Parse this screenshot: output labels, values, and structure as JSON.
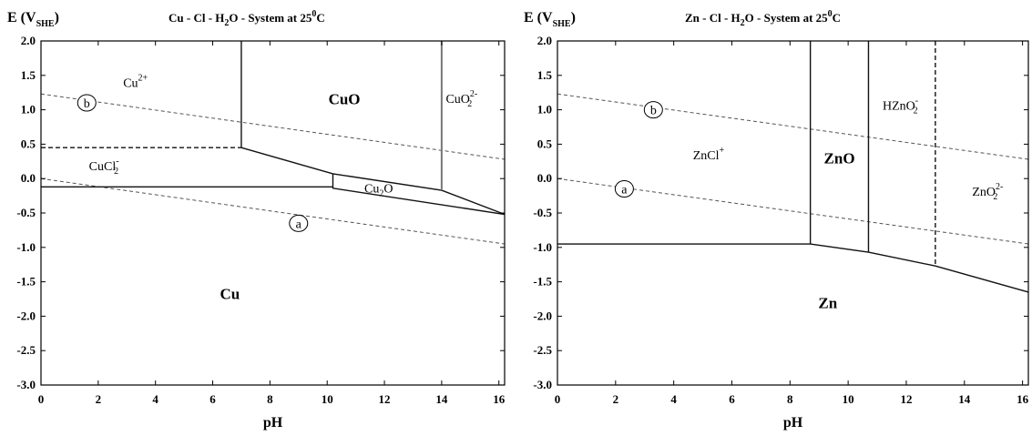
{
  "chart_data": [
    {
      "type": "line",
      "title": "Cu - Cl - H₂O - System at 25⁰C",
      "title_parts": {
        "pre": "Cu - Cl - H",
        "sub": "2",
        "mid": "O - System at 25",
        "sup": "0",
        "post": "C"
      },
      "xlabel": "pH",
      "ylabel": "E (V",
      "ylabel_sub": "SHE",
      "ylabel_close": ")",
      "xlim": [
        0,
        16.2
      ],
      "ylim": [
        -3.0,
        2.0
      ],
      "xticks": [
        0,
        2,
        4,
        6,
        8,
        10,
        12,
        14,
        16
      ],
      "yticks": [
        "2.0",
        "1.5",
        "1.0",
        "0.5",
        "0.0",
        "-0.5",
        "-1.0",
        "-1.5",
        "-2.0",
        "-2.5",
        "-3.0"
      ],
      "grid": false,
      "boundaries": [
        {
          "points": [
            [
              0,
              -0.12
            ],
            [
              10.2,
              -0.12
            ]
          ],
          "style": "solid"
        },
        {
          "points": [
            [
              0,
              0.45
            ],
            [
              7.0,
              0.45
            ]
          ],
          "style": "dashed"
        },
        {
          "points": [
            [
              7.0,
              2.0
            ],
            [
              7.0,
              0.45
            ]
          ],
          "style": "solid"
        },
        {
          "points": [
            [
              7.0,
              0.45
            ],
            [
              10.2,
              0.07
            ],
            [
              14.0,
              -0.17
            ],
            [
              16.2,
              -0.52
            ]
          ],
          "style": "solid"
        },
        {
          "points": [
            [
              10.2,
              0.07
            ],
            [
              10.2,
              -0.14
            ],
            [
              16.2,
              -0.52
            ]
          ],
          "style": "solid"
        },
        {
          "points": [
            [
              14.0,
              2.0
            ],
            [
              14.0,
              -0.17
            ]
          ],
          "style": "solid-gray"
        }
      ],
      "water_lines": [
        {
          "name": "a",
          "x": [
            0,
            16.2
          ],
          "y": [
            0.0,
            -0.95
          ]
        },
        {
          "name": "b",
          "x": [
            0,
            16.2
          ],
          "y": [
            1.23,
            0.28
          ]
        }
      ],
      "markers": [
        {
          "label": "a",
          "x": 9.0,
          "y": -0.65
        },
        {
          "label": "b",
          "x": 1.6,
          "y": 1.1
        }
      ],
      "regions": [
        {
          "base": "Cu",
          "sup": "2+",
          "sub": "",
          "x": 3.3,
          "y": 1.33,
          "style": "normal"
        },
        {
          "base": "CuO",
          "sup": "",
          "sub": "",
          "x": 10.6,
          "y": 1.08,
          "style": "bold"
        },
        {
          "base": "CuO",
          "sup": "2-",
          "sub": "2",
          "x": 14.7,
          "y": 1.1,
          "style": "normal"
        },
        {
          "base": "CuCl",
          "sup": "-",
          "sub": "2",
          "x": 2.2,
          "y": 0.12,
          "style": "normal"
        },
        {
          "base": "Cu",
          "sup": "",
          "sub": "2",
          "base2": "O",
          "x": 11.8,
          "y": -0.2,
          "style": "normal"
        },
        {
          "base": "Cu",
          "sup": "",
          "sub": "",
          "x": 6.6,
          "y": -1.75,
          "style": "bold"
        }
      ]
    },
    {
      "type": "line",
      "title": "Zn - Cl - H₂O - System at 25⁰C",
      "title_parts": {
        "pre": "Zn - Cl - H",
        "sub": "2",
        "mid": "O - System at 25",
        "sup": "0",
        "post": "C"
      },
      "xlabel": "pH",
      "ylabel": "E (V",
      "ylabel_sub": "SHE",
      "ylabel_close": ")",
      "xlim": [
        0,
        16.2
      ],
      "ylim": [
        -3.0,
        2.0
      ],
      "xticks": [
        0,
        2,
        4,
        6,
        8,
        10,
        12,
        14,
        16
      ],
      "yticks": [
        "2.0",
        "1.5",
        "1.0",
        "0.5",
        "0.0",
        "-0.5",
        "-1.0",
        "-1.5",
        "-2.0",
        "-2.5",
        "-3.0"
      ],
      "grid": false,
      "boundaries": [
        {
          "points": [
            [
              0,
              -0.95
            ],
            [
              8.7,
              -0.95
            ]
          ],
          "style": "solid"
        },
        {
          "points": [
            [
              8.7,
              2.0
            ],
            [
              8.7,
              -0.95
            ]
          ],
          "style": "solid"
        },
        {
          "points": [
            [
              10.7,
              2.0
            ],
            [
              10.7,
              -1.07
            ]
          ],
          "style": "solid"
        },
        {
          "points": [
            [
              8.7,
              -0.95
            ],
            [
              10.7,
              -1.07
            ],
            [
              13.0,
              -1.27
            ],
            [
              16.2,
              -1.65
            ]
          ],
          "style": "solid"
        },
        {
          "points": [
            [
              13.0,
              2.0
            ],
            [
              13.0,
              -1.27
            ]
          ],
          "style": "dashed"
        }
      ],
      "water_lines": [
        {
          "name": "a",
          "x": [
            0,
            16.2
          ],
          "y": [
            0.0,
            -0.95
          ]
        },
        {
          "name": "b",
          "x": [
            0,
            16.2
          ],
          "y": [
            1.23,
            0.28
          ]
        }
      ],
      "markers": [
        {
          "label": "a",
          "x": 2.3,
          "y": -0.15
        },
        {
          "label": "b",
          "x": 3.3,
          "y": 1.0
        }
      ],
      "regions": [
        {
          "base": "ZnCl",
          "sup": "+",
          "sub": "",
          "x": 5.2,
          "y": 0.28,
          "style": "normal"
        },
        {
          "base": "ZnO",
          "sup": "",
          "sub": "",
          "x": 9.7,
          "y": 0.22,
          "style": "bold"
        },
        {
          "base": "HZnO",
          "sup": "-",
          "sub": "2",
          "x": 11.8,
          "y": 1.0,
          "style": "normal"
        },
        {
          "base": "ZnO",
          "sup": "2-",
          "sub": "2",
          "x": 14.8,
          "y": -0.25,
          "style": "normal"
        },
        {
          "base": "Zn",
          "sup": "",
          "sub": "",
          "x": 9.3,
          "y": -1.88,
          "style": "bold"
        }
      ]
    }
  ]
}
